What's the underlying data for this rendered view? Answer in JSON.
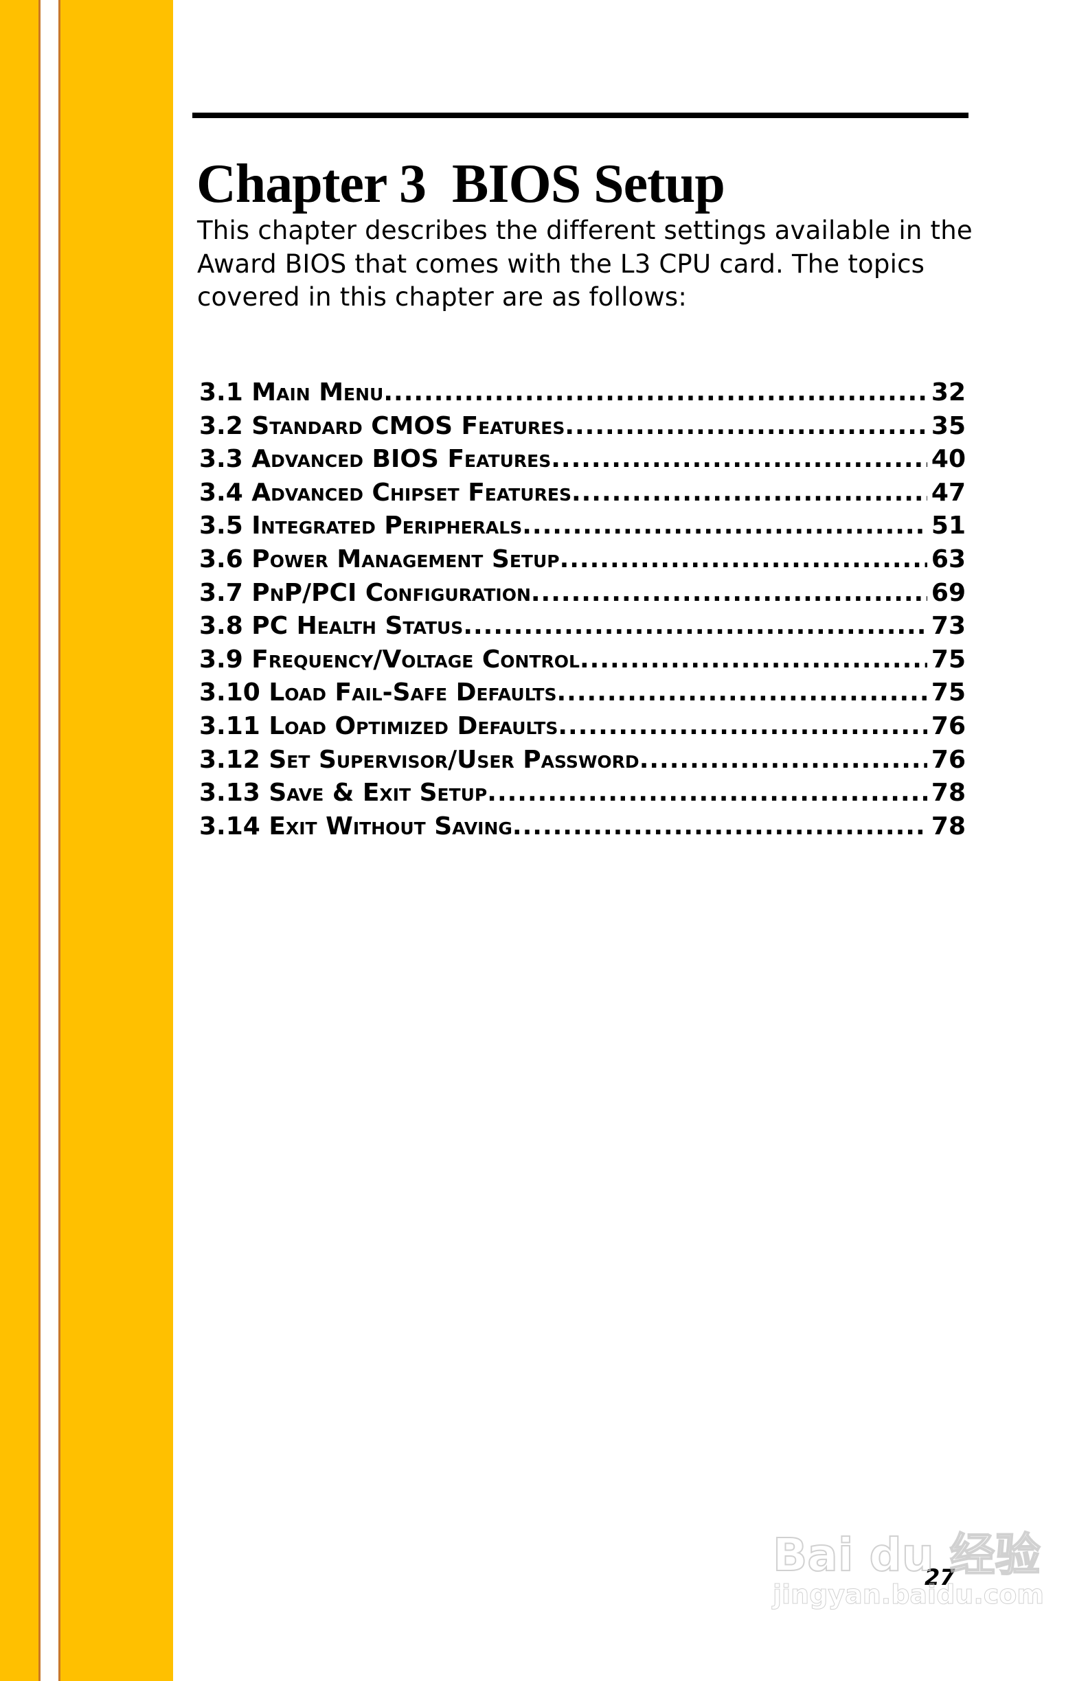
{
  "colors": {
    "stripe": "#FFC000",
    "stripe_line": "#C87828"
  },
  "title": "Chapter 3  BIOS Setup",
  "intro": "This chapter describes the different settings available in the Award BIOS that comes with the L3 CPU card. The topics covered in this chapter are as follows:",
  "toc": [
    {
      "label": "3.1 Main Menu",
      "page": "32"
    },
    {
      "label": "3.2 Standard CMOS Features",
      "page": "35"
    },
    {
      "label": "3.3 Advanced BIOS Features",
      "page": "40"
    },
    {
      "label": "3.4 Advanced Chipset Features ",
      "page": "47"
    },
    {
      "label": "3.5 Integrated Peripherals ",
      "page": "51"
    },
    {
      "label": "3.6 Power Management Setup",
      "page": "63"
    },
    {
      "label": "3.7 PnP/PCI Configuration ",
      "page": "69"
    },
    {
      "label": "3.8 PC Health Status",
      "page": "73"
    },
    {
      "label": "3.9 Frequency/Voltage Control ",
      "page": "75"
    },
    {
      "label": "3.10 Load Fail-Safe Defaults ",
      "page": "75"
    },
    {
      "label": "3.11 Load Optimized Defaults",
      "page": "76"
    },
    {
      "label": "3.12 Set Supervisor/User Password ",
      "page": "76"
    },
    {
      "label": "3.13 Save & Exit Setup ",
      "page": "78"
    },
    {
      "label": "3.14 Exit Without Saving",
      "page": "78"
    }
  ],
  "page_number": "27",
  "watermark": {
    "logo": "Bai du 经验",
    "url": "jingyan.baidu.com"
  }
}
